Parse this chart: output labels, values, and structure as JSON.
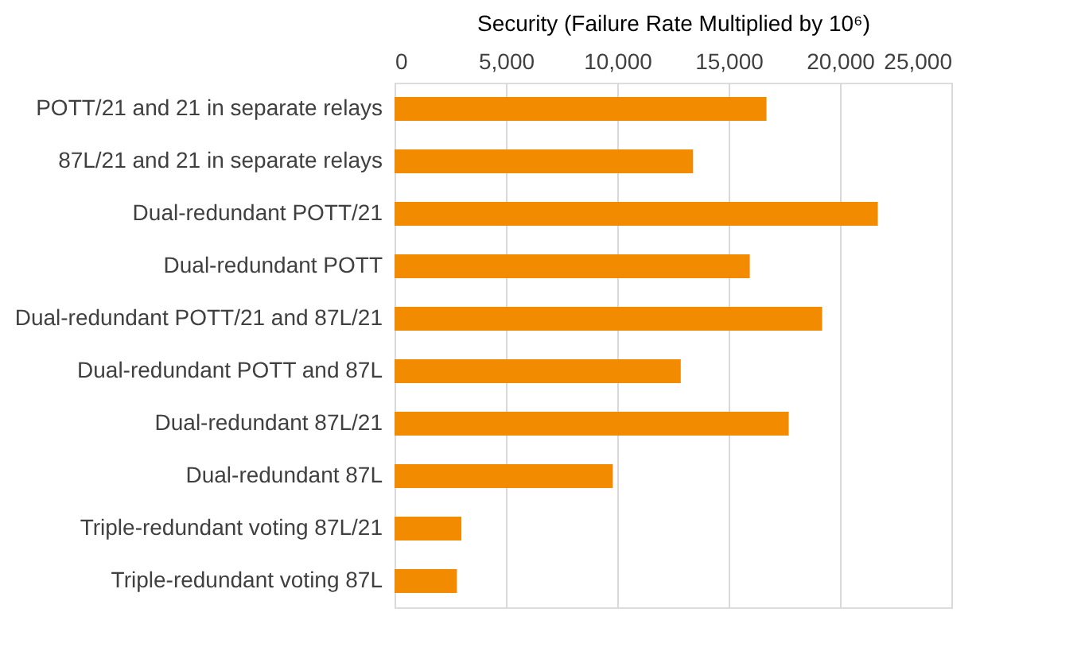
{
  "chart_data": {
    "type": "bar",
    "orientation": "horizontal",
    "xlabel": "Security (Failure Rate Multiplied by 10⁶)",
    "categories": [
      "POTT/21 and 21 in separate relays",
      "87L/21 and 21 in separate relays",
      "Dual-redundant POTT/21",
      "Dual-redundant POTT",
      "Dual-redundant POTT/21 and 87L/21",
      "Dual-redundant POTT and 87L",
      "Dual-redundant 87L/21",
      "Dual-redundant 87L",
      "Triple-redundant voting 87L/21",
      "Triple-redundant voting 87L"
    ],
    "values": [
      16700,
      13400,
      21700,
      15950,
      19200,
      12850,
      17700,
      9800,
      3000,
      2800
    ],
    "color": "#f38b00",
    "xlim": [
      0,
      25000
    ],
    "xticks": [
      {
        "value": 0,
        "label": "0"
      },
      {
        "value": 5000,
        "label": "5,000"
      },
      {
        "value": 10000,
        "label": "10,000"
      },
      {
        "value": 15000,
        "label": "15,000"
      },
      {
        "value": 20000,
        "label": "20,000"
      },
      {
        "value": 25000,
        "label": "25,000"
      }
    ],
    "grid": "x"
  }
}
